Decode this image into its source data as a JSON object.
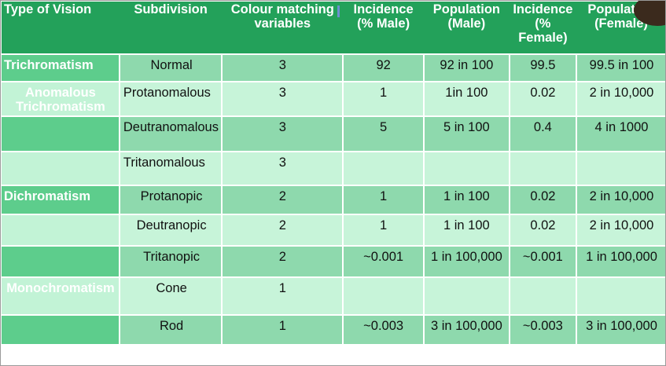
{
  "table": {
    "headers": [
      "Type of Vision",
      "Subdivision",
      "Colour matching variables",
      "Incidence (% Male)",
      "Population (Male)",
      "Incidence (% Female)",
      "Population (Female)"
    ],
    "rows": [
      {
        "type": "Trichromatism",
        "sub": "Normal",
        "vars": "3",
        "inc_m": "92",
        "pop_m": "92 in 100",
        "inc_f": "99.5",
        "pop_f": "99.5 in 100"
      },
      {
        "type": "Anomalous Trichromatism",
        "sub": "Protanomalous",
        "vars": "3",
        "inc_m": "1",
        "pop_m": "1in 100",
        "inc_f": "0.02",
        "pop_f": "2 in 10,000"
      },
      {
        "type": "",
        "sub": "Deutranomalous",
        "vars": "3",
        "inc_m": "5",
        "pop_m": "5 in 100",
        "inc_f": "0.4",
        "pop_f": "4 in 1000"
      },
      {
        "type": "",
        "sub": "Tritanomalous",
        "vars": "3",
        "inc_m": "",
        "pop_m": "",
        "inc_f": "",
        "pop_f": ""
      },
      {
        "type": "Dichromatism",
        "sub": "Protanopic",
        "vars": "2",
        "inc_m": "1",
        "pop_m": "1 in 100",
        "inc_f": "0.02",
        "pop_f": "2 in 10,000"
      },
      {
        "type": "",
        "sub": "Deutranopic",
        "vars": "2",
        "inc_m": "1",
        "pop_m": "1 in 100",
        "inc_f": "0.02",
        "pop_f": "2 in 10,000"
      },
      {
        "type": "",
        "sub": "Tritanopic",
        "vars": "2",
        "inc_m": "~0.001",
        "pop_m": "1 in 100,000",
        "inc_f": "~0.001",
        "pop_f": "1 in 100,000"
      },
      {
        "type": "Monochromatism",
        "sub": "Cone",
        "vars": "1",
        "inc_m": "",
        "pop_m": "",
        "inc_f": "",
        "pop_f": ""
      },
      {
        "type": "",
        "sub": "Rod",
        "vars": "1",
        "inc_m": "~0.003",
        "pop_m": "3 in 100,000",
        "inc_f": "~0.003",
        "pop_f": "3 in 100,000"
      }
    ]
  },
  "colors": {
    "header_bg": "#23a15a",
    "row_dark": "#8ed9ad",
    "row_light": "#c7f4d9"
  }
}
